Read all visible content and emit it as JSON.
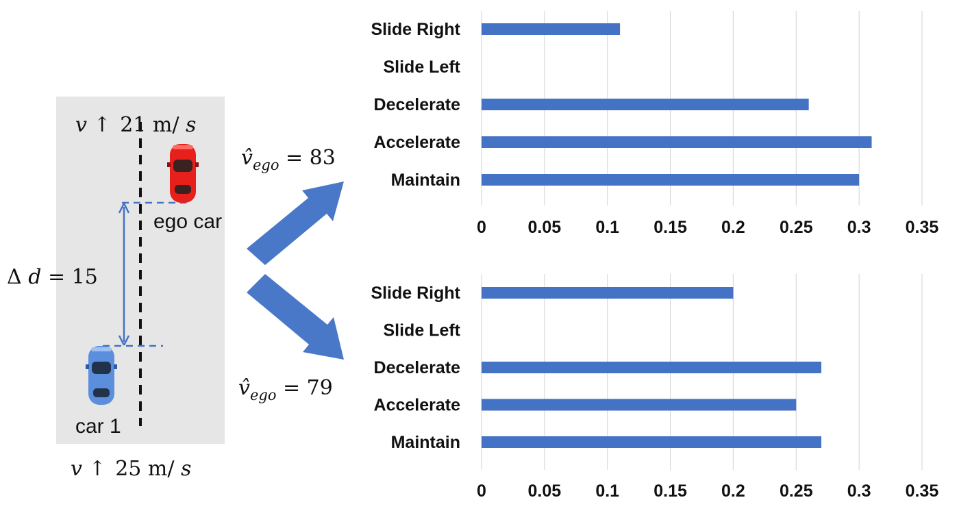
{
  "scene": {
    "top_velocity": {
      "var": "v",
      "arrow": "↑",
      "value": "21",
      "unit_main": " m/",
      "unit_it": "s"
    },
    "bottom_velocity": {
      "var": "v",
      "arrow": "↑",
      "value": "25",
      "unit_main": " m/",
      "unit_it": "s"
    },
    "distance": {
      "delta": "Δ",
      "var": "d",
      "eq": " = 15"
    },
    "ego_label": "ego car",
    "car1_label": "car 1",
    "v_hat_top": {
      "var": "v̂",
      "sub": "ego",
      "eq": " = 83"
    },
    "v_hat_bottom": {
      "var": "v̂",
      "sub": "ego",
      "eq": " = 79"
    },
    "colors": {
      "road": "#e6e6e6",
      "ego_car": "#e8201c",
      "car1": "#5b8fde",
      "arrow": "#4a78c8",
      "bars": "#4472c4"
    }
  },
  "chart_data": [
    {
      "type": "bar",
      "orientation": "horizontal",
      "categories": [
        "Slide Right",
        "Slide Left",
        "Decelerate",
        "Accelerate",
        "Maintain"
      ],
      "values": [
        0.11,
        0,
        0.26,
        0.31,
        0.3
      ],
      "xlim": [
        0,
        0.35
      ],
      "ticks": [
        "0",
        "0.05",
        "0.1",
        "0.15",
        "0.2",
        "0.25",
        "0.3",
        "0.35"
      ],
      "grid": true,
      "bar_color": "#4472c4"
    },
    {
      "type": "bar",
      "orientation": "horizontal",
      "categories": [
        "Slide Right",
        "Slide Left",
        "Decelerate",
        "Accelerate",
        "Maintain"
      ],
      "values": [
        0.2,
        0,
        0.27,
        0.25,
        0.27
      ],
      "xlim": [
        0,
        0.35
      ],
      "ticks": [
        "0",
        "0.05",
        "0.1",
        "0.15",
        "0.2",
        "0.25",
        "0.3",
        "0.35"
      ],
      "grid": true,
      "bar_color": "#4472c4"
    }
  ]
}
